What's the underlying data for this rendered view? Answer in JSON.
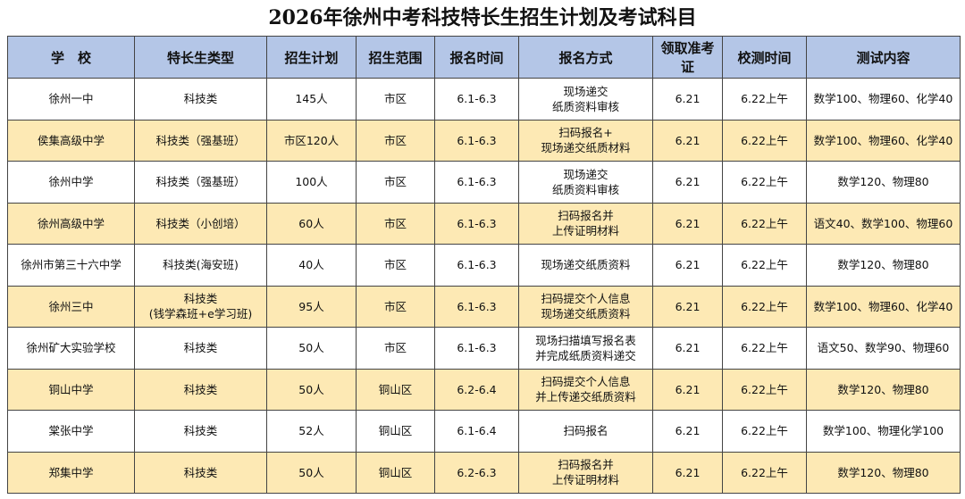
{
  "title": "2026年徐州中考科技特长生招生计划及考试科目",
  "table": {
    "header": [
      "学　校",
      "特长生类型",
      "招生计划",
      "招生范围",
      "报名时间",
      "报名方式",
      "领取准考证",
      "校测时间",
      "测试内容"
    ],
    "rows": [
      [
        "徐州一中",
        "科技类",
        "145人",
        "市区",
        "6.1-6.3",
        "现场递交\n纸质资料审核",
        "6.21",
        "6.22上午",
        "数学100、物理60、化学40"
      ],
      [
        "侯集高级中学",
        "科技类（强基班）",
        "市区120人",
        "市区",
        "6.1-6.3",
        "扫码报名+\n现场递交纸质材料",
        "6.21",
        "6.22上午",
        "数学100、物理60、化学40"
      ],
      [
        "徐州中学",
        "科技类（强基班）",
        "100人",
        "市区",
        "6.1-6.3",
        "现场递交\n纸质资料审核",
        "6.21",
        "6.22上午",
        "数学120、物理80"
      ],
      [
        "徐州高级中学",
        "科技类（小创培）",
        "60人",
        "市区",
        "6.1-6.3",
        "扫码报名并\n上传证明材料",
        "6.21",
        "6.22上午",
        "语文40、数学100、物理60"
      ],
      [
        "徐州市第三十六中学",
        "科技类(海安班)",
        "40人",
        "市区",
        "6.1-6.3",
        "现场递交纸质资料",
        "6.21",
        "6.22上午",
        "数学120、物理80"
      ],
      [
        "徐州三中",
        "科技类\n(钱学森班+e学习班)",
        "95人",
        "市区",
        "6.1-6.3",
        "扫码提交个人信息\n现场递交纸质资料",
        "6.21",
        "6.22上午",
        "数学100、物理60、化学40"
      ],
      [
        "徐州矿大实验学校",
        "科技类",
        "50人",
        "市区",
        "6.1-6.3",
        "现场扫描填写报名表\n并完成纸质资料递交",
        "6.21",
        "6.22上午",
        "语文50、数学90、物理60"
      ],
      [
        "铜山中学",
        "科技类",
        "50人",
        "铜山区",
        "6.2-6.4",
        "扫码提交个人信息\n并上传递交纸质资料",
        "6.21",
        "6.22上午",
        "数学120、物理80"
      ],
      [
        "棠张中学",
        "科技类",
        "52人",
        "铜山区",
        "6.1-6.4",
        "扫码报名",
        "6.21",
        "6.22上午",
        "数学100、物理化学100"
      ],
      [
        "郑集中学",
        "科技类",
        "50人",
        "铜山区",
        "6.2-6.3",
        "扫码报名并\n上传证明材料",
        "6.21",
        "6.22上午",
        "数学120、物理80"
      ]
    ]
  }
}
